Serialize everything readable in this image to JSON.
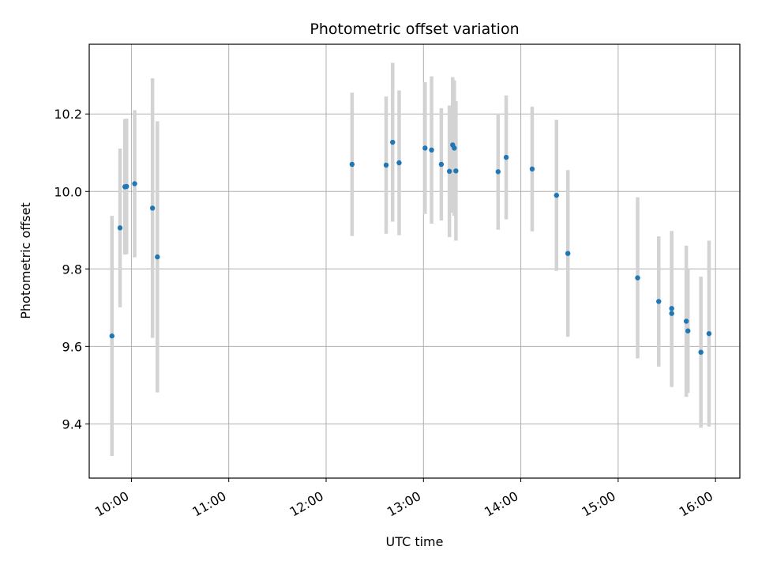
{
  "chart_data": {
    "type": "scatter",
    "title": "Photometric offset variation",
    "xlabel": "UTC time",
    "ylabel": "Photometric offset",
    "grid": true,
    "xlim": [
      "09:34",
      "16:15"
    ],
    "ylim": [
      9.26,
      10.38
    ],
    "x_ticks": [
      "10:00",
      "11:00",
      "12:00",
      "13:00",
      "14:00",
      "15:00",
      "16:00"
    ],
    "y_ticks": [
      9.4,
      9.6,
      9.8,
      10.0,
      10.2
    ],
    "y_tick_labels": [
      "9.4",
      "9.6",
      "9.8",
      "10.0",
      "10.2"
    ],
    "point_color": "#1f77b4",
    "errorbar_color": "#d3d3d3",
    "points": [
      {
        "x": "09:48",
        "y": 9.627,
        "yerr": 0.31
      },
      {
        "x": "09:53",
        "y": 9.906,
        "yerr": 0.205
      },
      {
        "x": "09:56",
        "y": 10.012,
        "yerr": 0.175
      },
      {
        "x": "09:57",
        "y": 10.013,
        "yerr": 0.175
      },
      {
        "x": "10:02",
        "y": 10.02,
        "yerr": 0.19
      },
      {
        "x": "10:13",
        "y": 9.957,
        "yerr": 0.335
      },
      {
        "x": "10:16",
        "y": 9.831,
        "yerr": 0.35
      },
      {
        "x": "12:16",
        "y": 10.07,
        "yerr": 0.185
      },
      {
        "x": "12:37",
        "y": 10.068,
        "yerr": 0.177
      },
      {
        "x": "12:41",
        "y": 10.127,
        "yerr": 0.205
      },
      {
        "x": "12:45",
        "y": 10.074,
        "yerr": 0.187
      },
      {
        "x": "13:01",
        "y": 10.112,
        "yerr": 0.17
      },
      {
        "x": "13:05",
        "y": 10.107,
        "yerr": 0.19
      },
      {
        "x": "13:11",
        "y": 10.07,
        "yerr": 0.145
      },
      {
        "x": "13:16",
        "y": 10.052,
        "yerr": 0.17
      },
      {
        "x": "13:18",
        "y": 10.12,
        "yerr": 0.175
      },
      {
        "x": "13:19",
        "y": 10.112,
        "yerr": 0.175
      },
      {
        "x": "13:20",
        "y": 10.053,
        "yerr": 0.18
      },
      {
        "x": "13:46",
        "y": 10.051,
        "yerr": 0.15
      },
      {
        "x": "13:51",
        "y": 10.088,
        "yerr": 0.16
      },
      {
        "x": "14:07",
        "y": 10.058,
        "yerr": 0.161
      },
      {
        "x": "14:22",
        "y": 9.99,
        "yerr": 0.195
      },
      {
        "x": "14:29",
        "y": 9.84,
        "yerr": 0.215
      },
      {
        "x": "15:12",
        "y": 9.777,
        "yerr": 0.208
      },
      {
        "x": "15:25",
        "y": 9.716,
        "yerr": 0.168
      },
      {
        "x": "15:33",
        "y": 9.685,
        "yerr": 0.19
      },
      {
        "x": "15:33",
        "y": 9.698,
        "yerr": 0.2
      },
      {
        "x": "15:42",
        "y": 9.665,
        "yerr": 0.195
      },
      {
        "x": "15:43",
        "y": 9.64,
        "yerr": 0.16
      },
      {
        "x": "15:51",
        "y": 9.585,
        "yerr": 0.195
      },
      {
        "x": "15:56",
        "y": 9.633,
        "yerr": 0.24
      }
    ]
  }
}
